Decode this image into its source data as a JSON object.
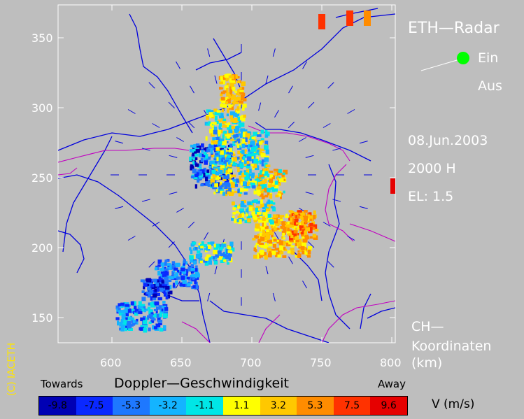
{
  "map": {
    "x_axis_ticks": [
      "600",
      "650",
      "700",
      "750",
      "800"
    ],
    "y_axis_ticks": [
      "350",
      "300",
      "250",
      "200",
      "150"
    ]
  },
  "sidebar": {
    "title": "ETH—Radar",
    "status_on": "Ein",
    "status_off": "Aus",
    "status_indicator_color": "#00ff00",
    "date": "08.Jun.2003",
    "hour": "2000 H",
    "elevation": "EL: 1.5",
    "coord_line1": "CH—",
    "coord_line2": "Koordinaten",
    "coord_line3": "(km)"
  },
  "copyright": "(C) IACETH",
  "legend": {
    "towards": "Towards",
    "title": "Doppler—Geschwindigkeit",
    "away": "Away",
    "units": "V  (m/s)",
    "bins": [
      {
        "label": "-9.8",
        "color": "#0000b4"
      },
      {
        "label": "-7.5",
        "color": "#0a28ff"
      },
      {
        "label": "-5.3",
        "color": "#1e78ff"
      },
      {
        "label": "-3.2",
        "color": "#14b4ff"
      },
      {
        "label": "-1.1",
        "color": "#00e6e6"
      },
      {
        "label": "1.1",
        "color": "#ffff00"
      },
      {
        "label": "3.2",
        "color": "#ffc800"
      },
      {
        "label": "5.3",
        "color": "#ff8c00"
      },
      {
        "label": "7.5",
        "color": "#ff3200"
      },
      {
        "label": "9.6",
        "color": "#e60000"
      }
    ]
  }
}
